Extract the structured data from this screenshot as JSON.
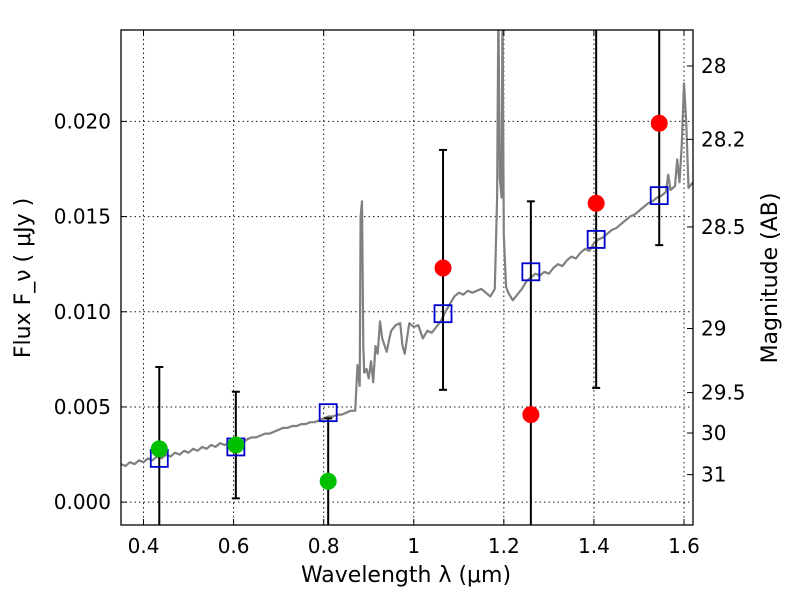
{
  "chart_data": {
    "type": "scatter",
    "xlabel": "Wavelength  λ (μm)",
    "ylabel": "Flux  F_ν  ( μJy )",
    "y2label": "Magnitude (AB)",
    "xlim": [
      0.35,
      1.62
    ],
    "ylim": [
      -0.0012,
      0.0248
    ],
    "x_ticks": [
      0.4,
      0.6,
      0.8,
      1.0,
      1.2,
      1.4,
      1.6
    ],
    "x_tick_labels": [
      "0.4",
      "0.6",
      "0.8",
      "1",
      "1.2",
      "1.4",
      "1.6"
    ],
    "y_ticks": [
      0.0,
      0.005,
      0.01,
      0.015,
      0.02
    ],
    "y_tick_labels": [
      "0.000",
      "0.005",
      "0.010",
      "0.015",
      "0.020"
    ],
    "mag_ticks": [
      {
        "label": "28",
        "mag": 28.0
      },
      {
        "label": "28.2",
        "mag": 28.2
      },
      {
        "label": "28.5",
        "mag": 28.5
      },
      {
        "label": "29",
        "mag": 29.0
      },
      {
        "label": "29.5",
        "mag": 29.5
      },
      {
        "label": "30",
        "mag": 30.0
      },
      {
        "label": "31",
        "mag": 31.0
      }
    ],
    "grid": true,
    "colors": {
      "model": "#808080",
      "observed": "#ff0000",
      "upper_limit": "#00c000",
      "model_photometry": "#0000cc",
      "errorbar": "#000000"
    },
    "series": [
      {
        "kind": "line",
        "color_key": "model",
        "points": [
          [
            0.35,
            0.002
          ],
          [
            0.36,
            0.0019
          ],
          [
            0.37,
            0.0021
          ],
          [
            0.38,
            0.002
          ],
          [
            0.39,
            0.0022
          ],
          [
            0.4,
            0.0021
          ],
          [
            0.41,
            0.0023
          ],
          [
            0.42,
            0.0022
          ],
          [
            0.43,
            0.0024
          ],
          [
            0.44,
            0.0023
          ],
          [
            0.45,
            0.0025
          ],
          [
            0.46,
            0.0024
          ],
          [
            0.47,
            0.0026
          ],
          [
            0.48,
            0.0025
          ],
          [
            0.49,
            0.0027
          ],
          [
            0.5,
            0.0026
          ],
          [
            0.51,
            0.0028
          ],
          [
            0.52,
            0.0027
          ],
          [
            0.53,
            0.0029
          ],
          [
            0.54,
            0.0028
          ],
          [
            0.55,
            0.003
          ],
          [
            0.56,
            0.0029
          ],
          [
            0.57,
            0.0031
          ],
          [
            0.58,
            0.003
          ],
          [
            0.59,
            0.0031
          ],
          [
            0.6,
            0.003
          ],
          [
            0.61,
            0.0032
          ],
          [
            0.62,
            0.0031
          ],
          [
            0.63,
            0.0033
          ],
          [
            0.64,
            0.0034
          ],
          [
            0.65,
            0.0034
          ],
          [
            0.66,
            0.0035
          ],
          [
            0.67,
            0.0036
          ],
          [
            0.68,
            0.0036
          ],
          [
            0.69,
            0.0037
          ],
          [
            0.7,
            0.0038
          ],
          [
            0.71,
            0.0039
          ],
          [
            0.72,
            0.0039
          ],
          [
            0.73,
            0.004
          ],
          [
            0.74,
            0.004
          ],
          [
            0.75,
            0.0041
          ],
          [
            0.76,
            0.0041
          ],
          [
            0.77,
            0.0042
          ],
          [
            0.78,
            0.0042
          ],
          [
            0.79,
            0.0043
          ],
          [
            0.8,
            0.0044
          ],
          [
            0.81,
            0.0045
          ],
          [
            0.82,
            0.0045
          ],
          [
            0.83,
            0.0046
          ],
          [
            0.84,
            0.0046
          ],
          [
            0.85,
            0.0047
          ],
          [
            0.86,
            0.0048
          ],
          [
            0.87,
            0.0048
          ],
          [
            0.875,
            0.0072
          ],
          [
            0.88,
            0.0061
          ],
          [
            0.882,
            0.015
          ],
          [
            0.885,
            0.0158
          ],
          [
            0.888,
            0.0082
          ],
          [
            0.89,
            0.0068
          ],
          [
            0.895,
            0.007
          ],
          [
            0.9,
            0.0065
          ],
          [
            0.905,
            0.0074
          ],
          [
            0.91,
            0.0063
          ],
          [
            0.915,
            0.0082
          ],
          [
            0.92,
            0.0078
          ],
          [
            0.925,
            0.0095
          ],
          [
            0.93,
            0.0086
          ],
          [
            0.94,
            0.0079
          ],
          [
            0.945,
            0.0085
          ],
          [
            0.95,
            0.009
          ],
          [
            0.96,
            0.0093
          ],
          [
            0.97,
            0.0094
          ],
          [
            0.975,
            0.0082
          ],
          [
            0.98,
            0.0078
          ],
          [
            0.99,
            0.0094
          ],
          [
            1.0,
            0.0092
          ],
          [
            1.01,
            0.0093
          ],
          [
            1.02,
            0.0086
          ],
          [
            1.03,
            0.009
          ],
          [
            1.04,
            0.0089
          ],
          [
            1.05,
            0.0092
          ],
          [
            1.06,
            0.0095
          ],
          [
            1.07,
            0.01
          ],
          [
            1.08,
            0.0104
          ],
          [
            1.09,
            0.0108
          ],
          [
            1.1,
            0.011
          ],
          [
            1.11,
            0.0109
          ],
          [
            1.12,
            0.0111
          ],
          [
            1.13,
            0.011
          ],
          [
            1.14,
            0.0111
          ],
          [
            1.15,
            0.0112
          ],
          [
            1.16,
            0.011
          ],
          [
            1.17,
            0.0108
          ],
          [
            1.18,
            0.0112
          ],
          [
            1.185,
            0.016
          ],
          [
            1.188,
            0.026
          ],
          [
            1.191,
            0.017
          ],
          [
            1.195,
            0.016
          ],
          [
            1.197,
            0.026
          ],
          [
            1.2,
            0.014
          ],
          [
            1.205,
            0.0113
          ],
          [
            1.21,
            0.011
          ],
          [
            1.22,
            0.0106
          ],
          [
            1.23,
            0.0109
          ],
          [
            1.24,
            0.0112
          ],
          [
            1.25,
            0.0116
          ],
          [
            1.26,
            0.0118
          ],
          [
            1.27,
            0.012
          ],
          [
            1.28,
            0.0119
          ],
          [
            1.29,
            0.0121
          ],
          [
            1.3,
            0.012
          ],
          [
            1.31,
            0.0123
          ],
          [
            1.32,
            0.0125
          ],
          [
            1.33,
            0.0124
          ],
          [
            1.34,
            0.0127
          ],
          [
            1.35,
            0.0129
          ],
          [
            1.36,
            0.0128
          ],
          [
            1.37,
            0.0131
          ],
          [
            1.38,
            0.0133
          ],
          [
            1.39,
            0.0132
          ],
          [
            1.4,
            0.0136
          ],
          [
            1.41,
            0.0138
          ],
          [
            1.42,
            0.0139
          ],
          [
            1.43,
            0.0141
          ],
          [
            1.44,
            0.0143
          ],
          [
            1.45,
            0.0144
          ],
          [
            1.46,
            0.0146
          ],
          [
            1.47,
            0.0148
          ],
          [
            1.48,
            0.015
          ],
          [
            1.49,
            0.0151
          ],
          [
            1.5,
            0.0153
          ],
          [
            1.51,
            0.0155
          ],
          [
            1.52,
            0.0157
          ],
          [
            1.53,
            0.0158
          ],
          [
            1.54,
            0.016
          ],
          [
            1.55,
            0.0161
          ],
          [
            1.56,
            0.0163
          ],
          [
            1.565,
            0.0172
          ],
          [
            1.57,
            0.0164
          ],
          [
            1.58,
            0.0166
          ],
          [
            1.585,
            0.018
          ],
          [
            1.59,
            0.0168
          ],
          [
            1.595,
            0.0187
          ],
          [
            1.6,
            0.022
          ],
          [
            1.605,
            0.02
          ],
          [
            1.61,
            0.0165
          ],
          [
            1.62,
            0.0168
          ]
        ]
      },
      {
        "kind": "errorbars",
        "color_key": "errorbar",
        "bars": [
          {
            "x": 0.435,
            "low": -0.0012,
            "high": 0.0071
          },
          {
            "x": 0.605,
            "low": 0.0002,
            "high": 0.0058
          },
          {
            "x": 0.81,
            "low": -0.0012,
            "high": 0.0044
          },
          {
            "x": 1.065,
            "low": 0.0059,
            "high": 0.0185
          },
          {
            "x": 1.26,
            "low": -0.0012,
            "high": 0.0158
          },
          {
            "x": 1.405,
            "low": 0.006,
            "high": 0.0248
          },
          {
            "x": 1.545,
            "low": 0.0135,
            "high": 0.0248
          }
        ]
      },
      {
        "kind": "squares",
        "color_key": "model_photometry",
        "points": [
          [
            0.435,
            0.0023
          ],
          [
            0.605,
            0.0029
          ],
          [
            0.81,
            0.0047
          ],
          [
            1.065,
            0.0099
          ],
          [
            1.26,
            0.0121
          ],
          [
            1.405,
            0.0138
          ],
          [
            1.545,
            0.0161
          ]
        ]
      },
      {
        "kind": "circles",
        "color_key": "upper_limit",
        "points": [
          [
            0.435,
            0.0028
          ],
          [
            0.605,
            0.003
          ],
          [
            0.81,
            0.0011
          ]
        ]
      },
      {
        "kind": "circles",
        "color_key": "observed",
        "points": [
          [
            1.065,
            0.0123
          ],
          [
            1.26,
            0.0046
          ],
          [
            1.405,
            0.0157
          ],
          [
            1.545,
            0.0199
          ]
        ]
      }
    ]
  }
}
